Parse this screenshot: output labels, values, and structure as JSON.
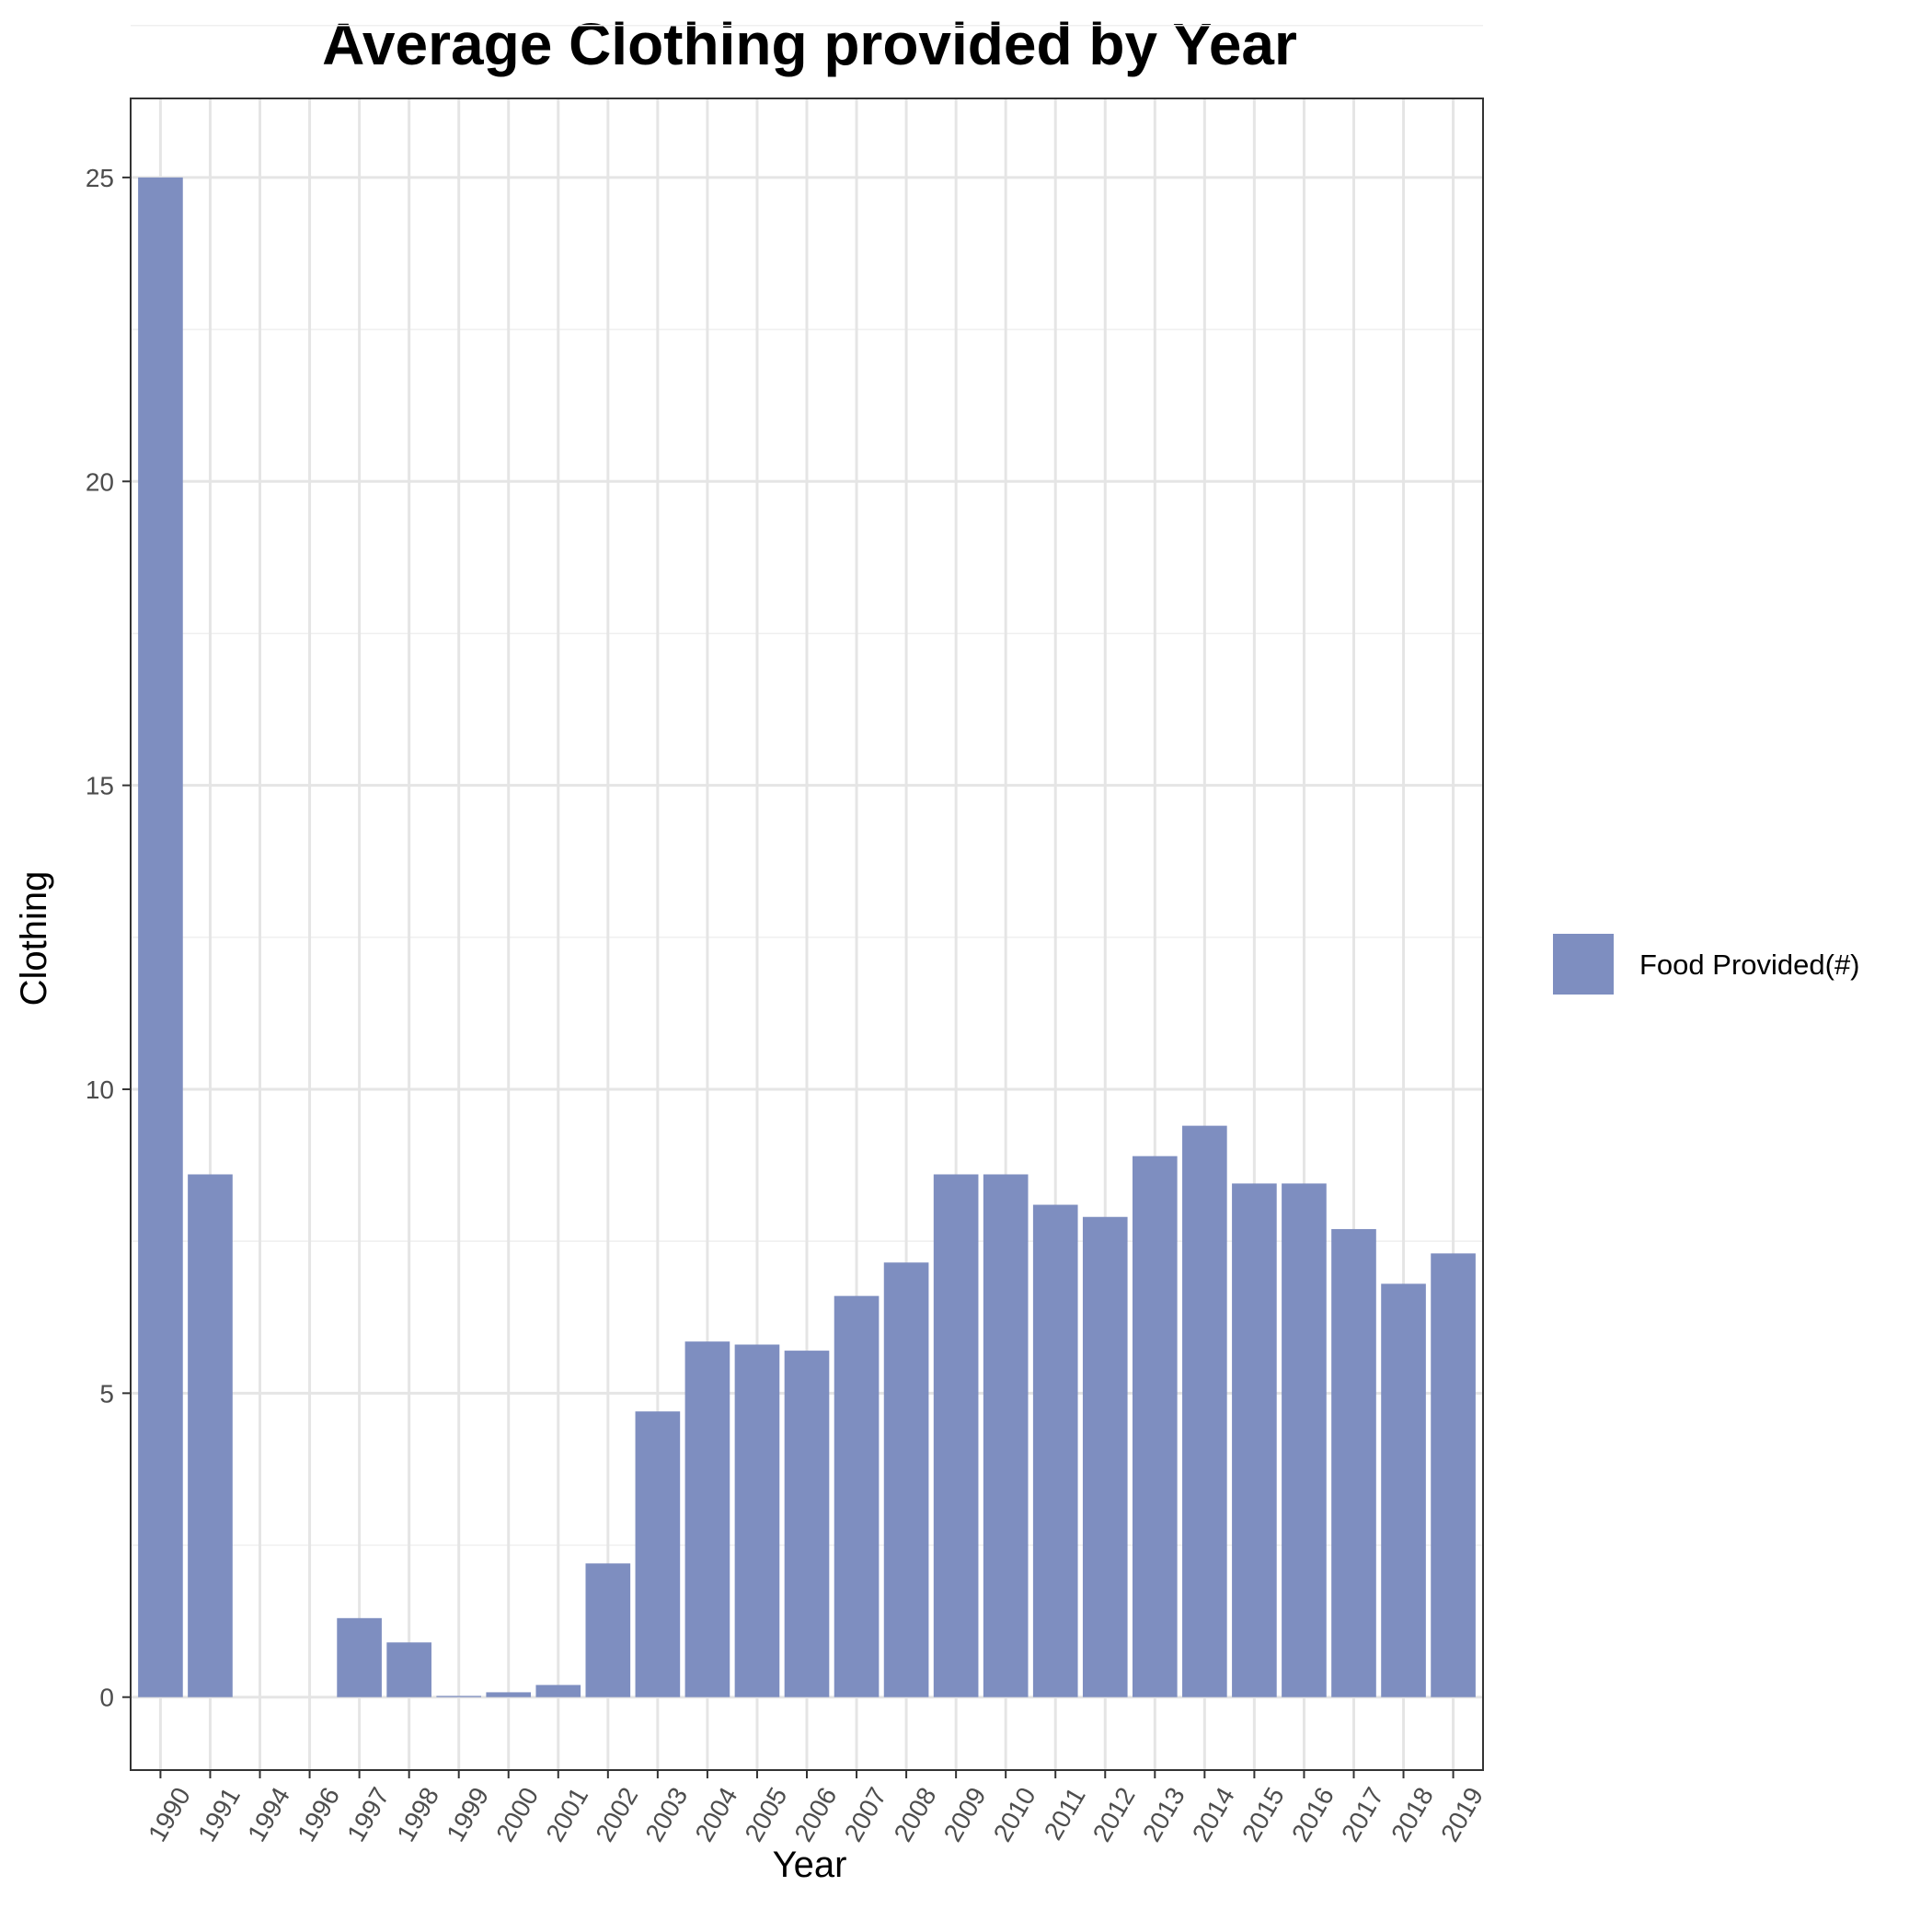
{
  "chart_data": {
    "type": "bar",
    "title": "Average Clothing provided by Year",
    "xlabel": "Year",
    "ylabel": "Clothing",
    "categories": [
      "1990",
      "1991",
      "1994",
      "1996",
      "1997",
      "1998",
      "1999",
      "2000",
      "2001",
      "2002",
      "2003",
      "2004",
      "2005",
      "2006",
      "2007",
      "2008",
      "2009",
      "2010",
      "2011",
      "2012",
      "2013",
      "2014",
      "2015",
      "2016",
      "2017",
      "2018",
      "2019"
    ],
    "series": [
      {
        "name": "Food Provided(#)",
        "color": "#7e8ec0",
        "values": [
          25.0,
          8.6,
          0,
          0,
          1.3,
          0.9,
          0.02,
          0.08,
          0.2,
          2.2,
          4.7,
          5.85,
          5.8,
          5.7,
          6.6,
          7.15,
          8.6,
          8.6,
          8.1,
          7.9,
          8.9,
          9.4,
          8.45,
          8.45,
          7.7,
          6.8,
          7.3
        ]
      }
    ],
    "ylim": [
      -1.2,
      26.3
    ],
    "yticks": [
      0,
      5,
      10,
      15,
      20,
      25
    ],
    "grid": true,
    "legend_position": "right"
  }
}
